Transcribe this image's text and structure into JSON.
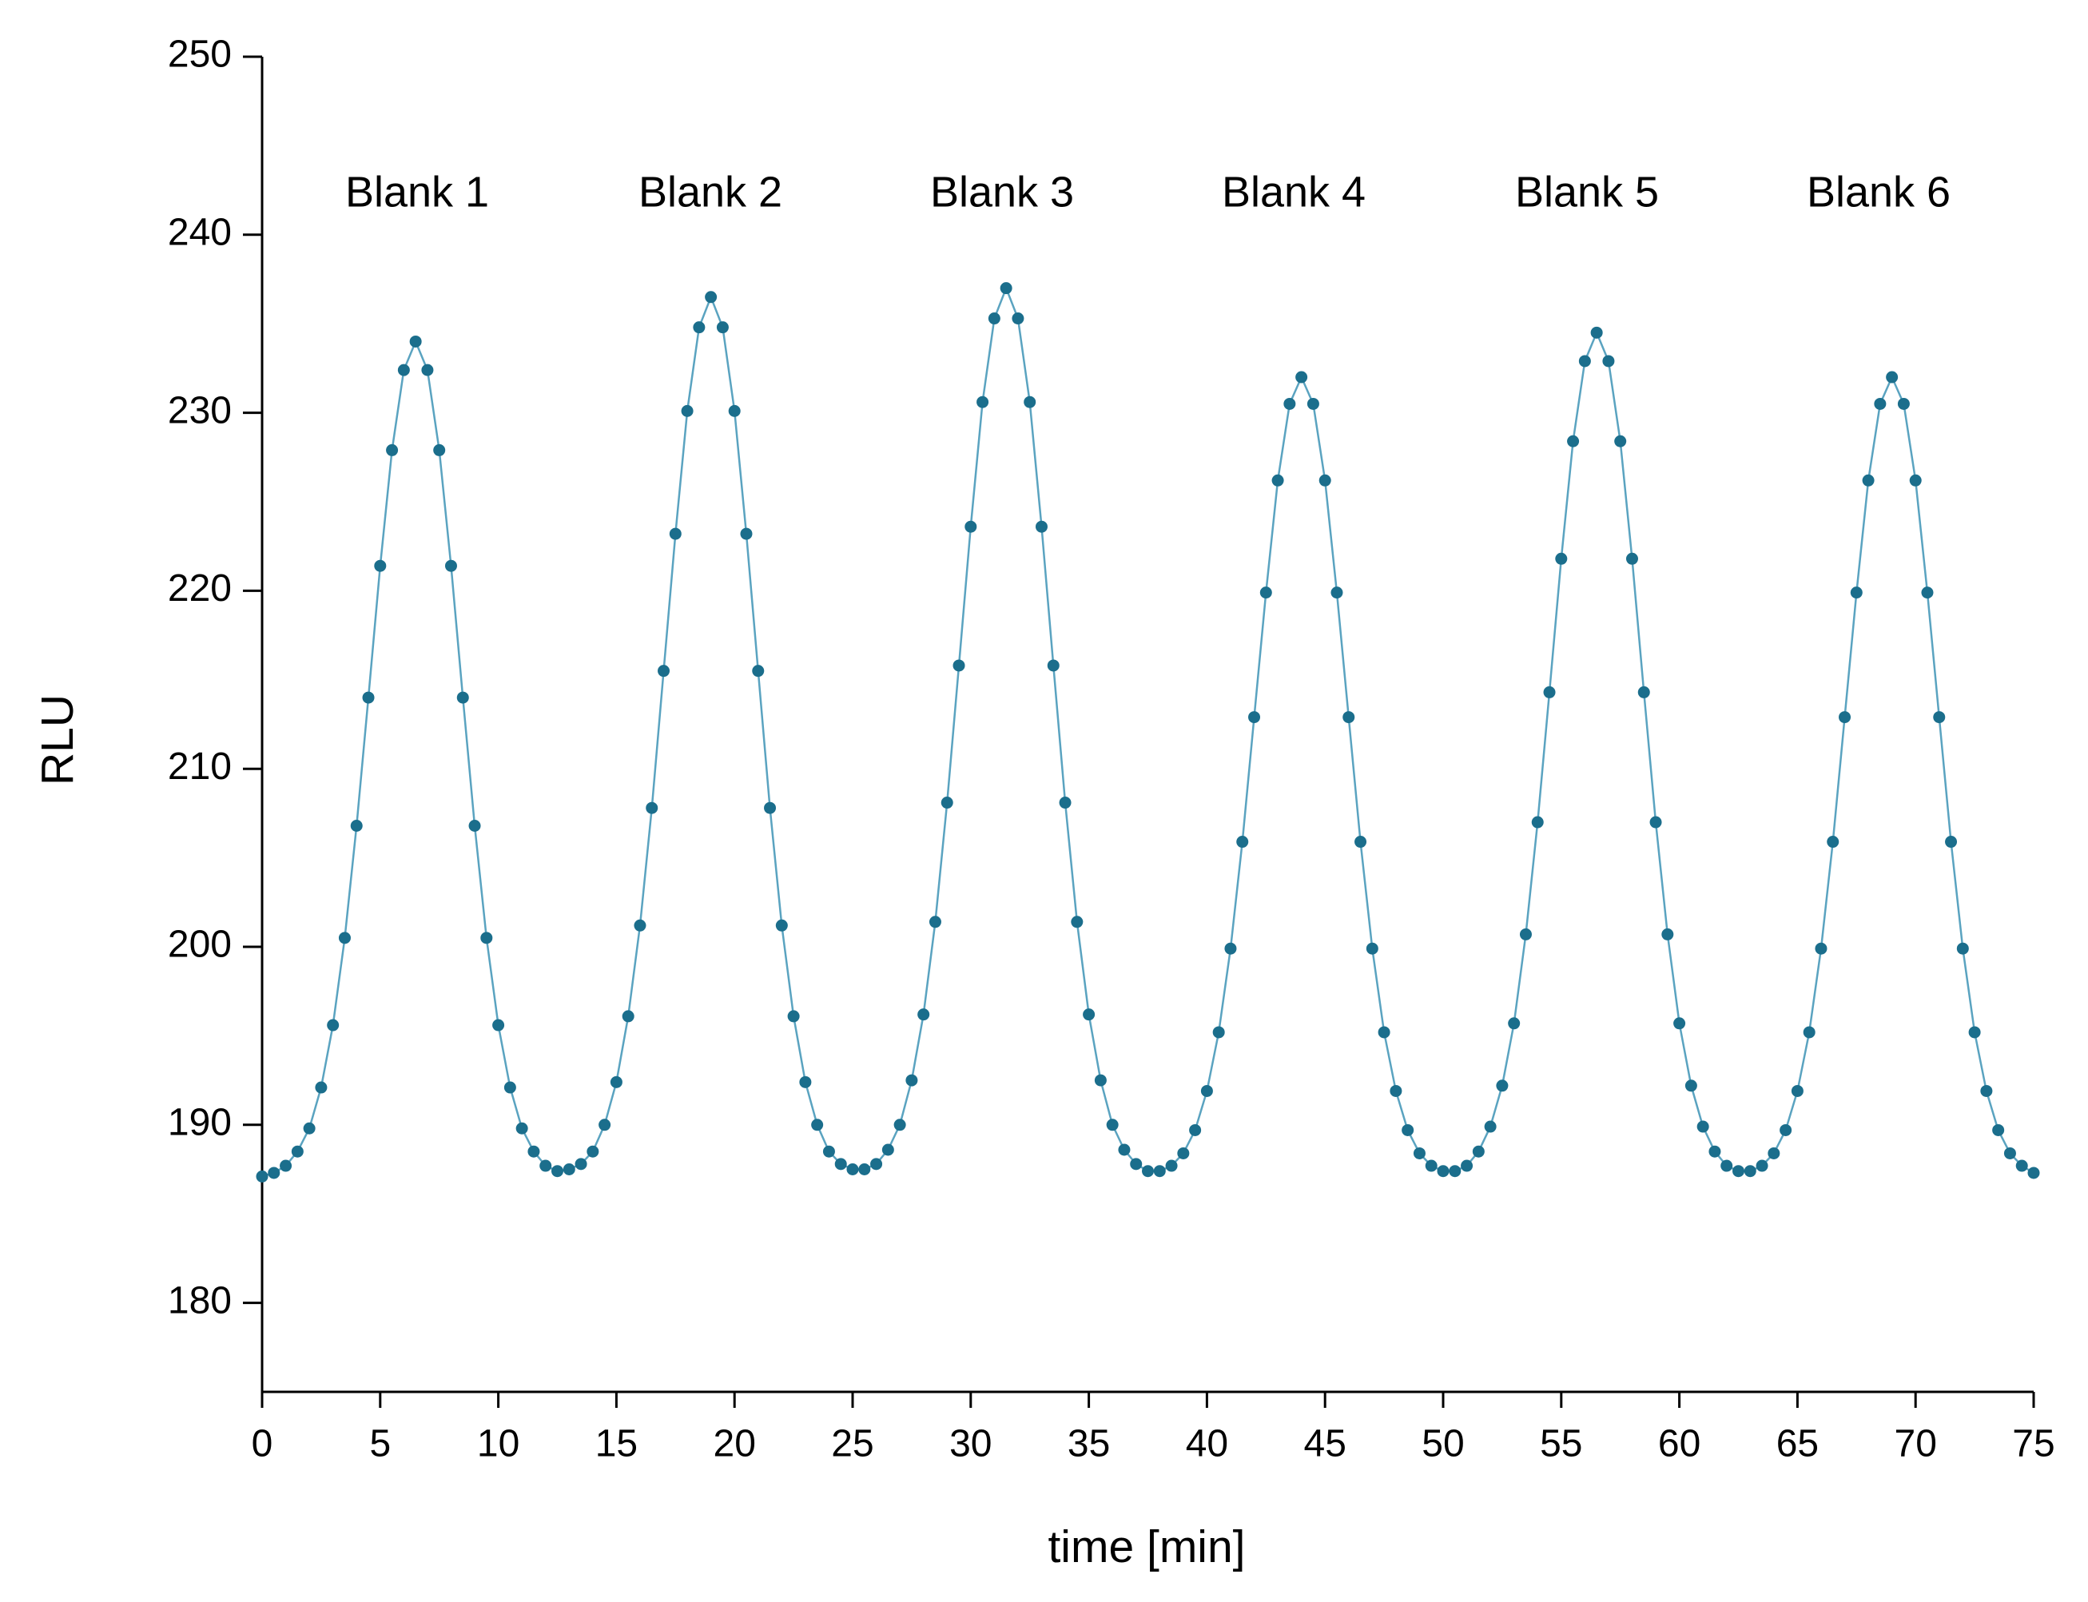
{
  "chart_data": {
    "type": "line",
    "xlabel": "time [min]",
    "ylabel": "RLU",
    "annotations": [
      "Blank 1",
      "Blank 2",
      "Blank 3",
      "Blank 4",
      "Blank 5",
      "Blank 6"
    ],
    "xlim": [
      0,
      75
    ],
    "xticks": [
      0,
      5,
      10,
      15,
      20,
      25,
      30,
      35,
      40,
      45,
      50,
      55,
      60,
      65,
      70,
      75
    ],
    "ylim": [
      175,
      250
    ],
    "yticks": [
      180,
      190,
      200,
      210,
      220,
      230,
      240,
      250
    ],
    "x": [
      0,
      0.5,
      1,
      1.5,
      2,
      2.5,
      3,
      3.5,
      4,
      4.5,
      5,
      5.5,
      6,
      6.5,
      7,
      7.5,
      8,
      8.5,
      9,
      9.5,
      10,
      10.5,
      11,
      11.5,
      12,
      12.5,
      13,
      13.5,
      14,
      14.5,
      15,
      15.5,
      16,
      16.5,
      17,
      17.5,
      18,
      18.5,
      19,
      19.5,
      20,
      20.5,
      21,
      21.5,
      22,
      22.5,
      23,
      23.5,
      24,
      24.5,
      25,
      25.5,
      26,
      26.5,
      27,
      27.5,
      28,
      28.5,
      29,
      29.5,
      30,
      30.5,
      31,
      31.5,
      32,
      32.5,
      33,
      33.5,
      34,
      34.5,
      35,
      35.5,
      36,
      36.5,
      37,
      37.5,
      38,
      38.5,
      39,
      39.5,
      40,
      40.5,
      41,
      41.5,
      42,
      42.5,
      43,
      43.5,
      44,
      44.5,
      45,
      45.5,
      46,
      46.5,
      47,
      47.5,
      48,
      48.5,
      49,
      49.5,
      50,
      50.5,
      51,
      51.5,
      52,
      52.5,
      53,
      53.5,
      54,
      54.5,
      55,
      55.5,
      56,
      56.5,
      57,
      57.5,
      58,
      58.5,
      59,
      59.5,
      60,
      60.5,
      61,
      61.5,
      62,
      62.5,
      63,
      63.5,
      64,
      64.5,
      65,
      65.5,
      66,
      66.5,
      67,
      67.5,
      68,
      68.5,
      69,
      69.5,
      70,
      70.5,
      71,
      71.5,
      72,
      72.5,
      73,
      73.5,
      74,
      74.5,
      75
    ],
    "series": [
      {
        "color": "#1b6e8c",
        "line_color": "#5aa3c0",
        "values": [
          187.1,
          187.3,
          187.7,
          188.5,
          189.8,
          192.1,
          195.6,
          200.5,
          206.8,
          214.0,
          221.4,
          227.9,
          232.4,
          234.0,
          232.4,
          227.9,
          221.4,
          214.0,
          206.8,
          200.5,
          195.6,
          192.1,
          189.8,
          188.5,
          187.7,
          187.4,
          187.5,
          187.8,
          188.5,
          190.0,
          192.4,
          196.1,
          201.2,
          207.8,
          215.5,
          223.2,
          230.1,
          234.8,
          236.5,
          234.8,
          230.1,
          223.2,
          215.5,
          207.8,
          201.2,
          196.1,
          192.4,
          190.0,
          188.5,
          187.8,
          187.5,
          187.5,
          187.8,
          188.6,
          190.0,
          192.5,
          196.2,
          201.4,
          208.1,
          215.8,
          223.6,
          230.6,
          235.3,
          237.0,
          235.3,
          230.6,
          223.6,
          215.8,
          208.1,
          201.4,
          196.2,
          192.5,
          190.0,
          188.6,
          187.8,
          187.4,
          187.4,
          187.7,
          188.4,
          189.7,
          191.9,
          195.2,
          199.9,
          205.9,
          212.9,
          219.9,
          226.2,
          230.5,
          232.0,
          230.5,
          226.2,
          219.9,
          212.9,
          205.9,
          199.9,
          195.2,
          191.9,
          189.7,
          188.4,
          187.7,
          187.4,
          187.4,
          187.7,
          188.5,
          189.9,
          192.2,
          195.7,
          200.7,
          207.0,
          214.3,
          221.8,
          228.4,
          232.9,
          234.5,
          232.9,
          228.4,
          221.8,
          214.3,
          207.0,
          200.7,
          195.7,
          192.2,
          189.9,
          188.5,
          187.7,
          187.4,
          187.4,
          187.7,
          188.4,
          189.7,
          191.9,
          195.2,
          199.9,
          205.9,
          212.9,
          219.9,
          226.2,
          230.5,
          232.0,
          230.5,
          226.2,
          219.9,
          212.9,
          205.9,
          199.9,
          195.2,
          191.9,
          189.7,
          188.4,
          187.7,
          187.3
        ]
      }
    ]
  }
}
